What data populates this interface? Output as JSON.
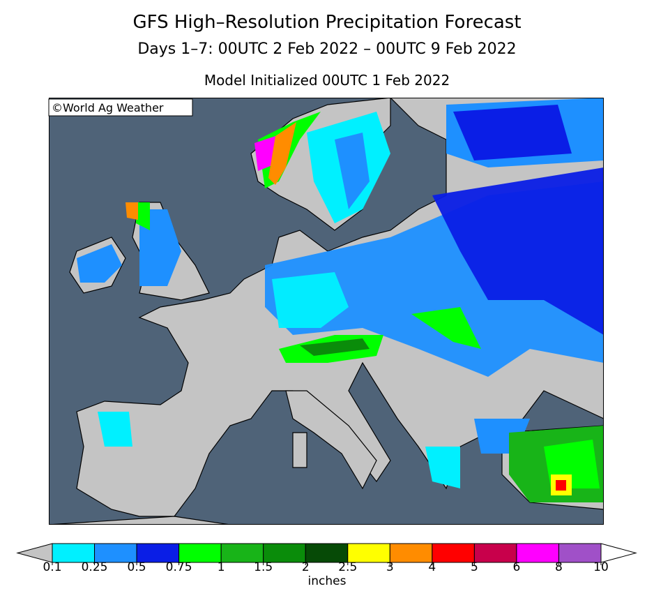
{
  "header": {
    "title": "GFS High–Resolution Precipitation Forecast",
    "subtitle": "Days 1–7: 00UTC 2 Feb 2022 – 00UTC 9 Feb 2022",
    "init": "Model Initialized 00UTC 1 Feb 2022"
  },
  "map": {
    "watermark": "©World Ag Weather"
  },
  "colorbar": {
    "ticks": [
      0.1,
      0.25,
      0.5,
      0.75,
      1,
      1.5,
      2,
      2.5,
      3,
      4,
      5,
      6,
      8,
      10
    ],
    "colors": [
      "#00f0ff",
      "#1e90ff",
      "#0a1ee6",
      "#00ff00",
      "#18b418",
      "#0a8c0a",
      "#064a06",
      "#ffff00",
      "#ff8c00",
      "#ff0000",
      "#c8004b",
      "#ff00ff",
      "#a050c8"
    ],
    "under_color": "#c4c4c4",
    "over_color": "#ffffff",
    "unit": "inches"
  }
}
